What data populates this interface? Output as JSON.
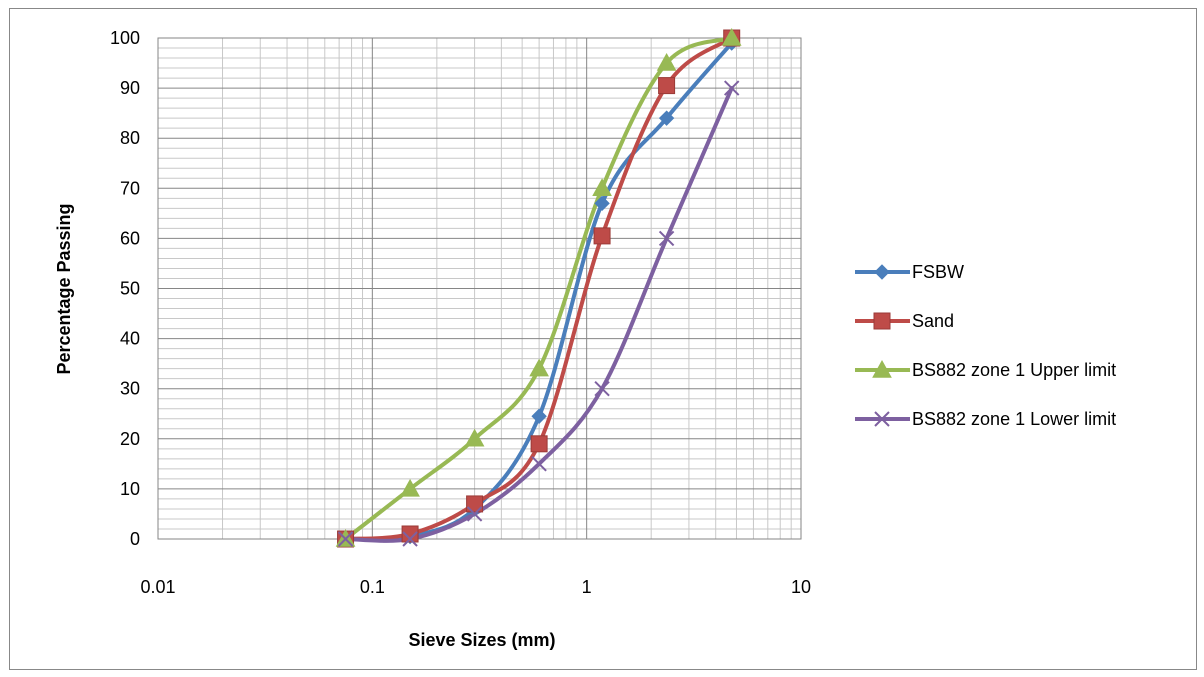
{
  "chart_data": {
    "type": "line",
    "title": "",
    "xlabel": "Sieve Sizes (mm)",
    "ylabel": "Percentage Passing",
    "xscale": "log",
    "xlim": [
      0.01,
      10
    ],
    "ylim": [
      0,
      100
    ],
    "x_ticks": [
      "0.01",
      "0.1",
      "1",
      "10"
    ],
    "y_ticks": [
      "0",
      "10",
      "20",
      "30",
      "40",
      "50",
      "60",
      "70",
      "80",
      "90",
      "100"
    ],
    "grid": true,
    "smooth": true,
    "legend_position": "right",
    "series": [
      {
        "name": "FSBW",
        "color": "#4a7ebb",
        "marker": "diamond",
        "x": [
          0.075,
          0.15,
          0.3,
          0.6,
          1.18,
          2.36,
          4.75
        ],
        "y": [
          0,
          0.5,
          6,
          24.5,
          67,
          84,
          99
        ]
      },
      {
        "name": "Sand",
        "color": "#be4b48",
        "marker": "square",
        "x": [
          0.075,
          0.15,
          0.3,
          0.6,
          1.18,
          2.36,
          4.75
        ],
        "y": [
          0,
          1,
          7,
          19,
          60.5,
          90.5,
          100
        ]
      },
      {
        "name": "BS882 zone 1 Upper limit",
        "color": "#98b954",
        "marker": "triangle",
        "x": [
          0.075,
          0.15,
          0.3,
          0.6,
          1.18,
          2.36,
          4.75
        ],
        "y": [
          0,
          10,
          20,
          34,
          70,
          95,
          100
        ]
      },
      {
        "name": "BS882 zone 1 Lower limit",
        "color": "#7d60a0",
        "marker": "x",
        "x": [
          0.075,
          0.15,
          0.3,
          0.6,
          1.18,
          2.36,
          4.75
        ],
        "y": [
          0,
          0,
          5,
          15,
          30,
          60,
          90
        ]
      }
    ]
  }
}
